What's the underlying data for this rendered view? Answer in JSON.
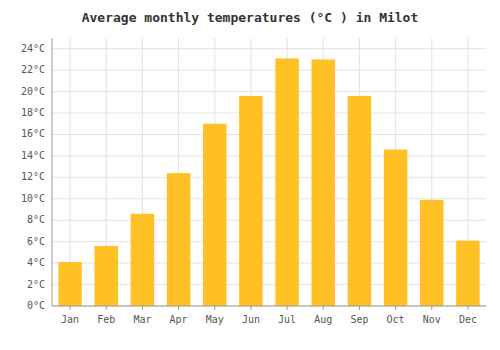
{
  "chart_data": {
    "type": "bar",
    "title": "Average monthly temperatures (°C ) in Milot",
    "categories": [
      "Jan",
      "Feb",
      "Mar",
      "Apr",
      "May",
      "Jun",
      "Jul",
      "Aug",
      "Sep",
      "Oct",
      "Nov",
      "Dec"
    ],
    "values": [
      4.1,
      5.6,
      8.6,
      12.4,
      17.0,
      19.6,
      23.1,
      23.0,
      19.6,
      14.6,
      9.9,
      6.1
    ],
    "color": "#FFC125",
    "ylim": [
      0,
      25
    ],
    "yticks": [
      {
        "value": 0,
        "label": "0°C"
      },
      {
        "value": 2,
        "label": "2°C"
      },
      {
        "value": 4,
        "label": "4°C"
      },
      {
        "value": 6,
        "label": "6°C"
      },
      {
        "value": 8,
        "label": "8°C"
      },
      {
        "value": 10,
        "label": "10°C"
      },
      {
        "value": 12,
        "label": "12°C"
      },
      {
        "value": 14,
        "label": "14°C"
      },
      {
        "value": 16,
        "label": "16°C"
      },
      {
        "value": 18,
        "label": "18°C"
      },
      {
        "value": 20,
        "label": "20°C"
      },
      {
        "value": 22,
        "label": "22°C"
      },
      {
        "value": 24,
        "label": "24°C"
      }
    ],
    "grid": true
  }
}
